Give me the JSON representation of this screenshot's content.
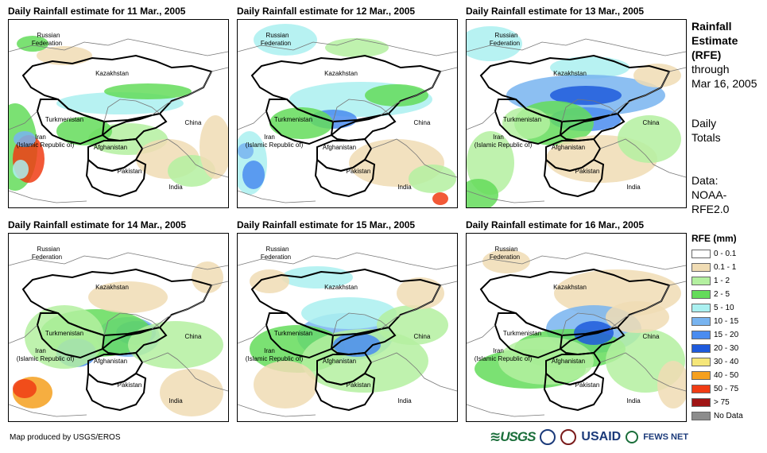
{
  "panels": [
    {
      "title": "Daily Rainfall estimate for 11 Mar., 2005",
      "day": 11
    },
    {
      "title": "Daily Rainfall estimate for 12 Mar., 2005",
      "day": 12
    },
    {
      "title": "Daily Rainfall estimate for 13 Mar., 2005",
      "day": 13
    },
    {
      "title": "Daily Rainfall estimate for 14 Mar., 2005",
      "day": 14
    },
    {
      "title": "Daily Rainfall estimate for 15 Mar., 2005",
      "day": 15
    },
    {
      "title": "Daily Rainfall estimate for 16 Mar., 2005",
      "day": 16
    }
  ],
  "map_labels": {
    "russia": "Russian",
    "russia2": "Federation",
    "kazakhstan": "Kazakhstan",
    "turkmenistan": "Turkmenistan",
    "china": "China",
    "iran": "Iran",
    "iran2": "(Islamic Republic of)",
    "afghanistan": "Afghanistan",
    "pakistan": "Pakistan",
    "india": "India"
  },
  "sidebar": {
    "title_line1": "Rainfall",
    "title_line2": "Estimate",
    "title_line3": "(RFE)",
    "through": "through",
    "date": "Mar 16, 2005",
    "totals1": "Daily",
    "totals2": "Totals",
    "data1": "Data:",
    "data2": "NOAA-",
    "data3": "RFE2.0"
  },
  "legend": {
    "title": "RFE (mm)",
    "items": [
      {
        "label": "0 - 0.1",
        "color": "#ffffff"
      },
      {
        "label": "0.1 - 1",
        "color": "#f0dcb4"
      },
      {
        "label": "1 - 2",
        "color": "#b4f0a0"
      },
      {
        "label": "2 - 5",
        "color": "#64dc5a"
      },
      {
        "label": "5 - 10",
        "color": "#aaf0f0"
      },
      {
        "label": "10 - 15",
        "color": "#78b4f0"
      },
      {
        "label": "15 - 20",
        "color": "#4a8cf0"
      },
      {
        "label": "20 - 30",
        "color": "#1e5adc"
      },
      {
        "label": "30 - 40",
        "color": "#f5e678"
      },
      {
        "label": "40 - 50",
        "color": "#f5a01e"
      },
      {
        "label": "50 - 75",
        "color": "#f03c14"
      },
      {
        "label": "> 75",
        "color": "#a01414"
      },
      {
        "label": "No Data",
        "color": "#8c8c8c"
      }
    ]
  },
  "footer": {
    "credit": "Map produced by USGS/EROS"
  },
  "logos": {
    "usgs": "≋USGS",
    "usaid": "USAID",
    "fews": "FEWS NET"
  }
}
